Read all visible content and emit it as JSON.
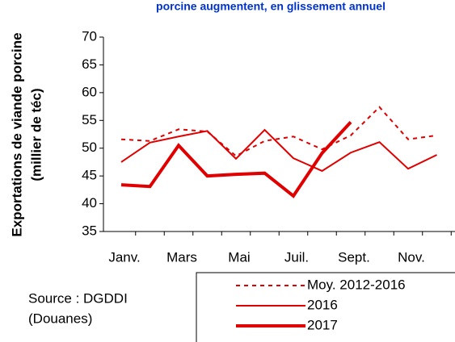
{
  "chart_data": {
    "type": "line",
    "title": "porcine augmentent, en glissement annuel",
    "y_label": [
      "Exportations de viande porcine",
      "(millier de téc)"
    ],
    "source": [
      "Source : DGDDI",
      "(Douanes)"
    ],
    "categories": [
      "Janv.",
      null,
      "Mars",
      null,
      "Mai",
      null,
      "Juil.",
      null,
      "Sept.",
      null,
      "Nov.",
      null
    ],
    "series": [
      {
        "name": "Moy. 2012-2016",
        "color": "#e00000",
        "style": "dashed",
        "width": 2,
        "values": [
          51.6,
          51.3,
          53.4,
          53,
          48.6,
          51.3,
          52.1,
          49.8,
          52.3,
          57.4,
          51.6,
          52.3
        ]
      },
      {
        "name": "2016",
        "color": "#e00000",
        "style": "solid",
        "width": 2,
        "values": [
          47.5,
          51,
          52.1,
          53.1,
          48.1,
          53.3,
          48.2,
          45.9,
          49.2,
          51.1,
          46.3,
          48.8
        ]
      },
      {
        "name": "2017",
        "color": "#e00000",
        "style": "solid",
        "width": 4,
        "values": [
          43.4,
          43.1,
          50.5,
          45,
          45.3,
          45.5,
          41.4,
          49.1,
          54.7,
          null,
          null,
          null
        ]
      }
    ],
    "ylim": [
      35,
      70
    ],
    "yticks": [
      35,
      40,
      45,
      50,
      55,
      60,
      65,
      70
    ]
  }
}
